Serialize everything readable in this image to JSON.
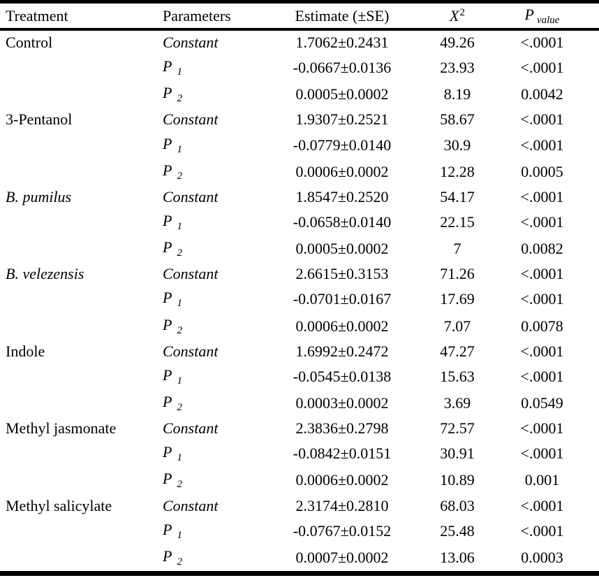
{
  "table": {
    "header": {
      "treatment": "Treatment",
      "parameters": "Parameters",
      "estimate": "Estimate (±SE)",
      "chi_base": "X",
      "chi_sup": "2",
      "p_base": "P",
      "p_sub": "value"
    },
    "rows": [
      {
        "treatment": "Control",
        "treatment_italic": false,
        "param": "Constant",
        "param_sub": "",
        "estimate": "1.7062±0.2431",
        "chi_square": "49.26",
        "p_value": "<.0001"
      },
      {
        "treatment": "",
        "treatment_italic": false,
        "param": "P",
        "param_sub": "1",
        "estimate": "-0.0667±0.0136",
        "chi_square": "23.93",
        "p_value": "<.0001"
      },
      {
        "treatment": "",
        "treatment_italic": false,
        "param": "P",
        "param_sub": "2",
        "estimate": "0.0005±0.0002",
        "chi_square": "8.19",
        "p_value": "0.0042"
      },
      {
        "treatment": "3-Pentanol",
        "treatment_italic": false,
        "param": "Constant",
        "param_sub": "",
        "estimate": "1.9307±0.2521",
        "chi_square": "58.67",
        "p_value": "<.0001"
      },
      {
        "treatment": "",
        "treatment_italic": false,
        "param": "P",
        "param_sub": "1",
        "estimate": "-0.0779±0.0140",
        "chi_square": "30.9",
        "p_value": "<.0001"
      },
      {
        "treatment": "",
        "treatment_italic": false,
        "param": "P",
        "param_sub": "2",
        "estimate": "0.0006±0.0002",
        "chi_square": "12.28",
        "p_value": "0.0005"
      },
      {
        "treatment": "B. pumilus",
        "treatment_italic": true,
        "param": "Constant",
        "param_sub": "",
        "estimate": "1.8547±0.2520",
        "chi_square": "54.17",
        "p_value": "<.0001"
      },
      {
        "treatment": "",
        "treatment_italic": false,
        "param": "P",
        "param_sub": "1",
        "estimate": "-0.0658±0.0140",
        "chi_square": "22.15",
        "p_value": "<.0001"
      },
      {
        "treatment": "",
        "treatment_italic": false,
        "param": "P",
        "param_sub": "2",
        "estimate": "0.0005±0.0002",
        "chi_square": "7",
        "p_value": "0.0082"
      },
      {
        "treatment": "B. velezensis",
        "treatment_italic": true,
        "param": "Constant",
        "param_sub": "",
        "estimate": "2.6615±0.3153",
        "chi_square": "71.26",
        "p_value": "<.0001"
      },
      {
        "treatment": "",
        "treatment_italic": false,
        "param": "P",
        "param_sub": "1",
        "estimate": "-0.0701±0.0167",
        "chi_square": "17.69",
        "p_value": "<.0001"
      },
      {
        "treatment": "",
        "treatment_italic": false,
        "param": "P",
        "param_sub": "2",
        "estimate": "0.0006±0.0002",
        "chi_square": "7.07",
        "p_value": "0.0078"
      },
      {
        "treatment": "Indole",
        "treatment_italic": false,
        "param": "Constant",
        "param_sub": "",
        "estimate": "1.6992±0.2472",
        "chi_square": "47.27",
        "p_value": "<.0001"
      },
      {
        "treatment": "",
        "treatment_italic": false,
        "param": "P",
        "param_sub": "1",
        "estimate": "-0.0545±0.0138",
        "chi_square": "15.63",
        "p_value": "<.0001"
      },
      {
        "treatment": "",
        "treatment_italic": false,
        "param": "P",
        "param_sub": "2",
        "estimate": "0.0003±0.0002",
        "chi_square": "3.69",
        "p_value": "0.0549"
      },
      {
        "treatment": "Methyl jasmonate",
        "treatment_italic": false,
        "param": "Constant",
        "param_sub": "",
        "estimate": "2.3836±0.2798",
        "chi_square": "72.57",
        "p_value": "<.0001"
      },
      {
        "treatment": "",
        "treatment_italic": false,
        "param": "P",
        "param_sub": "1",
        "estimate": "-0.0842±0.0151",
        "chi_square": "30.91",
        "p_value": "<.0001"
      },
      {
        "treatment": "",
        "treatment_italic": false,
        "param": "P",
        "param_sub": "2",
        "estimate": "0.0006±0.0002",
        "chi_square": "10.89",
        "p_value": "0.001"
      },
      {
        "treatment": "Methyl salicylate",
        "treatment_italic": false,
        "param": "Constant",
        "param_sub": "",
        "estimate": "2.3174±0.2810",
        "chi_square": "68.03",
        "p_value": "<.0001"
      },
      {
        "treatment": "",
        "treatment_italic": false,
        "param": "P",
        "param_sub": "1",
        "estimate": "-0.0767±0.0152",
        "chi_square": "25.48",
        "p_value": "<.0001"
      },
      {
        "treatment": "",
        "treatment_italic": false,
        "param": "P",
        "param_sub": "2",
        "estimate": "0.0007±0.0002",
        "chi_square": "13.06",
        "p_value": "0.0003"
      }
    ]
  }
}
